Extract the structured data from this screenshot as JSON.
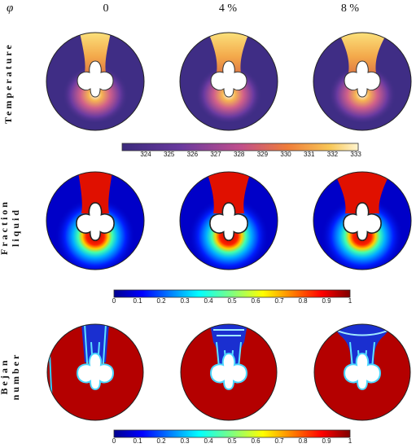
{
  "header": {
    "symbol": "φ",
    "columns": [
      "0",
      "4 %",
      "8 %"
    ]
  },
  "rows": [
    {
      "label": "Temperature",
      "lines": [
        "Temperature"
      ]
    },
    {
      "label": "Fraction liquid",
      "lines": [
        "Fraction",
        "liquid"
      ]
    },
    {
      "label": "Bejan number",
      "lines": [
        "Bejan",
        "number"
      ]
    }
  ],
  "colorbars": {
    "temperature": {
      "ticks": [
        "324",
        "325",
        "326",
        "327",
        "328",
        "329",
        "330",
        "331",
        "332",
        "333"
      ],
      "colormap": "thermal"
    },
    "fraction": {
      "ticks": [
        "0",
        "0.1",
        "0.2",
        "0.3",
        "0.4",
        "0.5",
        "0.6",
        "0.7",
        "0.8",
        "0.9",
        "1"
      ],
      "colormap": "jet"
    },
    "bejan": {
      "ticks": [
        "0",
        "0.1",
        "0.2",
        "0.3",
        "0.4",
        "0.5",
        "0.6",
        "0.7",
        "0.8",
        "0.9",
        "1"
      ],
      "colormap": "jet"
    }
  },
  "colors": {
    "thermal_low": "#3b2a7d",
    "thermal_high": "#fff5d0",
    "jet_low": "#00008f",
    "jet_high": "#7f0000"
  }
}
